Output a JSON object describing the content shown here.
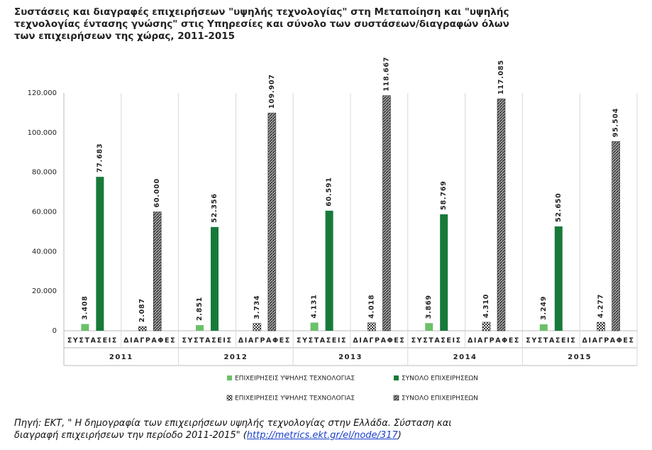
{
  "chart_data": {
    "type": "bar",
    "title": [
      "Συστάσεις και διαγραφές επιχειρήσεων \"υψηλής τεχνολογίας\" στη Μεταποίηση και \"υψηλής",
      "τεχνολογίας έντασης γνώσης\" στις Υπηρεσίες και σύνολο των συστάσεων/διαγραφών όλων",
      "των επιχειρήσεων της χώρας, 2011-2015"
    ],
    "categories": [
      "ΣΥΣΤΑΣΕΙΣ",
      "ΔΙΑΓΡΑΦΕΣ",
      "ΣΥΣΤΑΣΕΙΣ",
      "ΔΙΑΓΡΑΦΕΣ",
      "ΣΥΣΤΑΣΕΙΣ",
      "ΔΙΑΓΡΑΦΕΣ",
      "ΣΥΣΤΑΣΕΙΣ",
      "ΔΙΑΓΡΑΦΕΣ",
      "ΣΥΣΤΑΣΕΙΣ",
      "ΔΙΑΓΡΑΦΕΣ"
    ],
    "groups": [
      "2011",
      "2012",
      "2013",
      "2014",
      "2015"
    ],
    "series": [
      {
        "name": "ΕΠΙΧΕΙΡΗΣΕΙΣ ΥΨΗΛΗΣ ΤΕΧΝΟΛΟΓΙΑΣ",
        "color": "#6cc06a",
        "values": [
          3408,
          null,
          2851,
          null,
          4131,
          null,
          3869,
          null,
          3249,
          null
        ],
        "value_labels": [
          "3.408",
          null,
          "2.851",
          null,
          "4.131",
          null,
          "3.869",
          null,
          "3.249",
          null
        ]
      },
      {
        "name": "ΣΥΝΟΛΟ ΕΠΙΧΕΙΡΗΣΕΩΝ",
        "color": "#177a3a",
        "values": [
          77683,
          null,
          52356,
          null,
          60591,
          null,
          58769,
          null,
          52650,
          null
        ],
        "value_labels": [
          "77.683",
          null,
          "52.356",
          null,
          "60.591",
          null,
          "58.769",
          null,
          "52.650",
          null
        ]
      },
      {
        "name": "ΕΠΙΧΕΙΡΗΣΕΙΣ ΥΨΗΛΗΣ ΤΕΧΝΟΛΟΓΙΑΣ",
        "color": "#ffffff",
        "pattern": "dots",
        "values": [
          null,
          2087,
          null,
          3734,
          null,
          4018,
          null,
          4310,
          null,
          4277
        ],
        "value_labels": [
          null,
          "2.087",
          null,
          "3.734",
          null,
          "4.018",
          null,
          "4.310",
          null,
          "4.277"
        ]
      },
      {
        "name": "ΣΥΝΟΛΟ ΕΠΙΧΕΙΡΗΣΕΩΝ",
        "color": "#a6a6a6",
        "pattern": "hatch",
        "values": [
          null,
          60000,
          null,
          109907,
          null,
          118667,
          null,
          117085,
          null,
          95504
        ],
        "value_labels": [
          null,
          "60.000",
          null,
          "109.907",
          null,
          "118.667",
          null,
          "117.085",
          null,
          "95.504"
        ]
      }
    ],
    "ylim": [
      0,
      120000
    ],
    "yticks": [
      0,
      {
        "value": 20000,
        "label": "20.000"
      },
      {
        "value": 40000,
        "label": "40.000"
      },
      {
        "value": 60000,
        "label": "60.000"
      },
      {
        "value": 80000,
        "label": "80.000"
      },
      {
        "value": 100000,
        "label": "100.000"
      },
      {
        "value": 120000,
        "label": "120.000"
      }
    ],
    "grid": false,
    "legend": "bottom"
  },
  "source": {
    "lines": [
      "Πηγή: ΕΚΤ, \" Η δημογραφία των επιχειρήσεων υψηλής τεχνολογίας στην Ελλάδα. Σύσταση και",
      "διαγραφή επιχειρήσεων την περίοδο 2011-2015\" ("
    ],
    "link": "http://metrics.ekt.gr/el/node/317",
    "end": ")"
  }
}
